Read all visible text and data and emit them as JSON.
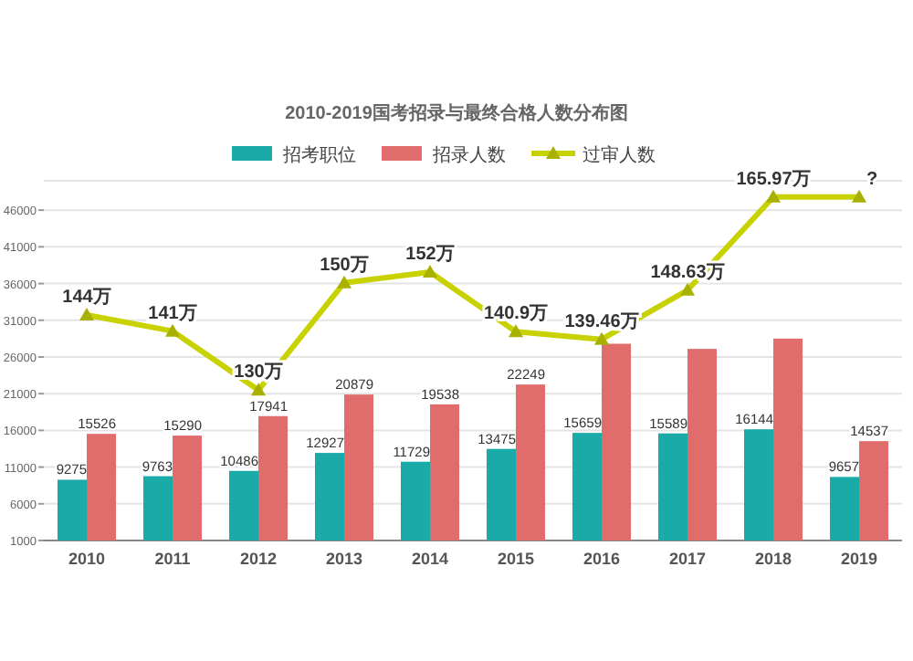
{
  "chart_data": {
    "type": "bar",
    "title": "2010-2019国考招录与最终合格人数分布图",
    "categories": [
      "2010",
      "2011",
      "2012",
      "2013",
      "2014",
      "2015",
      "2016",
      "2017",
      "2018",
      "2019"
    ],
    "series": [
      {
        "name": "招考职位",
        "color": "#1aaba8",
        "values": [
          9275,
          9763,
          10486,
          12927,
          11729,
          13475,
          15659,
          15589,
          16144,
          9657
        ],
        "value_labels": [
          "9275",
          "9763",
          "10486",
          "12927",
          "11729",
          "13475",
          "15659",
          "15589",
          "16144",
          "9657"
        ]
      },
      {
        "name": "招录人数",
        "color": "#e06c6c",
        "values": [
          15526,
          15290,
          17941,
          20879,
          19538,
          22249,
          27800,
          27100,
          28500,
          14537
        ],
        "value_labels": [
          "15526",
          "15290",
          "17941",
          "20879",
          "19538",
          "22249",
          null,
          null,
          null,
          "14537"
        ]
      },
      {
        "name": "过审人数",
        "type": "line",
        "axis": "y2",
        "color": "#c8d200",
        "marker": "triangle",
        "values": [
          144,
          141,
          130,
          150,
          152,
          140.9,
          139.46,
          148.63,
          165.97,
          165.97
        ],
        "value_labels": [
          "144万",
          "141万",
          "130万",
          "150万",
          "152万",
          "140.9万",
          "139.46万",
          "148.63万",
          "165.97万",
          "?"
        ]
      }
    ],
    "ylim": [
      1000,
      50000
    ],
    "yticks": [
      1000,
      6000,
      11000,
      16000,
      21000,
      26000,
      31000,
      36000,
      41000,
      46000
    ],
    "y2lim": [
      102,
      169
    ],
    "tick_labels": "xy",
    "grid": "y",
    "legend": "top"
  }
}
